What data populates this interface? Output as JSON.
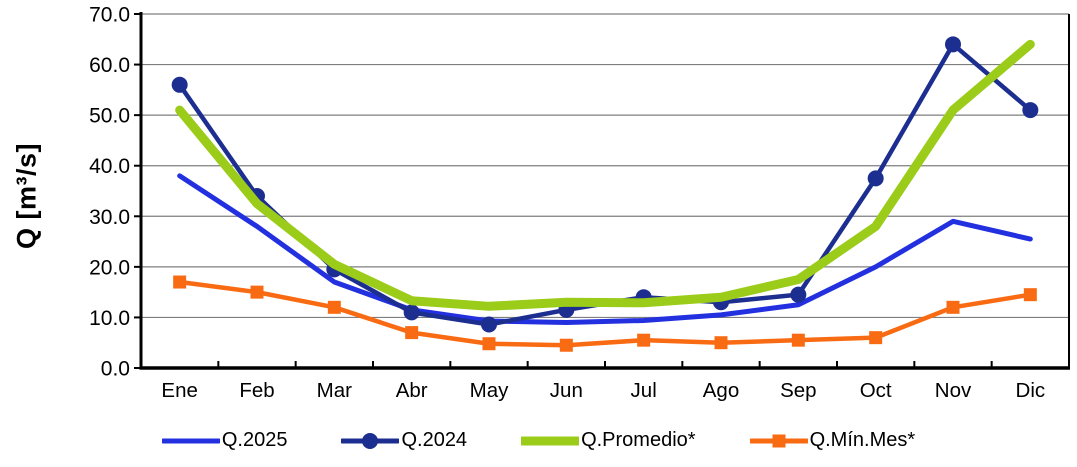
{
  "chart_data": {
    "type": "line",
    "title": "",
    "xlabel": "",
    "ylabel": "Q [m³/s]",
    "categories": [
      "Ene",
      "Feb",
      "Mar",
      "Abr",
      "May",
      "Jun",
      "Jul",
      "Ago",
      "Sep",
      "Oct",
      "Nov",
      "Dic"
    ],
    "ylim": [
      0,
      70
    ],
    "ytick_step": 10,
    "ytick_labels": [
      "0.0",
      "10.0",
      "20.0",
      "30.0",
      "40.0",
      "50.0",
      "60.0",
      "70.0"
    ],
    "grid": true,
    "legend_position": "bottom",
    "colors": {
      "grid": "#7F7F7F",
      "axis": "#000000",
      "q2025": "#2330DF",
      "q2024": "#1C2E8F",
      "promedio": "#9ACC19",
      "minmes": "#F96B13"
    },
    "series": [
      {
        "name": "Q.2025",
        "color": "#2330DF",
        "marker": "none",
        "line_width": 5,
        "values": [
          38.0,
          28.0,
          17.0,
          11.5,
          9.3,
          9.0,
          9.4,
          10.5,
          12.5,
          20.0,
          29.0,
          25.5
        ]
      },
      {
        "name": "Q.2024",
        "color": "#1C2E8F",
        "marker": "circle",
        "line_width": 4.5,
        "values": [
          56.0,
          34.0,
          19.5,
          11.0,
          8.6,
          11.5,
          14.0,
          13.0,
          14.5,
          37.5,
          64.0,
          51.0
        ]
      },
      {
        "name": "Q.Promedio*",
        "color": "#9ACC19",
        "marker": "none",
        "line_width": 9,
        "values": [
          51.0,
          32.5,
          20.5,
          13.3,
          12.2,
          13.0,
          12.9,
          14.0,
          17.5,
          28.0,
          51.0,
          64.0
        ]
      },
      {
        "name": "Q.Mín.Mes*",
        "color": "#F96B13",
        "marker": "square",
        "line_width": 4.5,
        "values": [
          17.0,
          15.0,
          12.0,
          7.0,
          4.8,
          4.5,
          5.5,
          5.0,
          5.5,
          6.0,
          12.0,
          14.5
        ]
      }
    ]
  }
}
